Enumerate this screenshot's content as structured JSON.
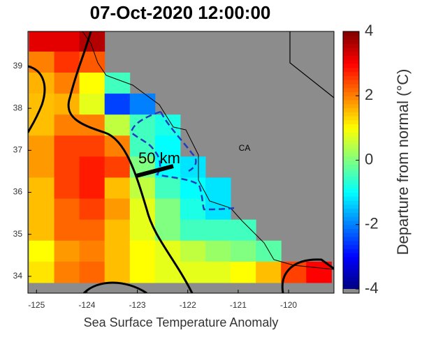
{
  "title": "07-Oct-2020 12:00:00",
  "xlabel": "Sea Surface Temperature Anomaly",
  "xlim": [
    -125.17,
    -119.1
  ],
  "ylim": [
    33.6,
    39.83
  ],
  "xticks": [
    -125,
    -124,
    -123,
    -122,
    -121,
    -120
  ],
  "yticks": [
    34,
    35,
    36,
    37,
    38,
    39
  ],
  "colorbar": {
    "label": "Departure from normal (°C)",
    "lim": [
      -4,
      4
    ],
    "ticks": [
      4,
      2,
      0,
      -2,
      -4
    ]
  },
  "annotations": {
    "state": "CA",
    "scale": "50 km"
  },
  "grid": {
    "lons": [
      -124.9,
      -124.4,
      -123.9,
      -123.4,
      -122.9,
      -122.4,
      -121.9,
      -121.4,
      -120.9,
      -120.4,
      -119.9,
      -119.4
    ],
    "lats": [
      39.6,
      39.1,
      38.6,
      38.1,
      37.6,
      37.1,
      36.6,
      36.1,
      35.6,
      35.1,
      34.6,
      34.1
    ],
    "values": [
      [
        3.2,
        3.2,
        3.6,
        null,
        null,
        null,
        null,
        null,
        null,
        null,
        null,
        null
      ],
      [
        2,
        2.6,
        2.3,
        null,
        null,
        null,
        null,
        null,
        null,
        null,
        null,
        null
      ],
      [
        1.6,
        2,
        1,
        -0.5,
        null,
        null,
        null,
        null,
        null,
        null,
        null,
        null
      ],
      [
        1.5,
        1.6,
        0.8,
        -2.5,
        -2,
        null,
        null,
        null,
        null,
        null,
        null,
        null
      ],
      [
        1.5,
        2,
        2,
        0.5,
        -0.5,
        -0.8,
        null,
        null,
        null,
        null,
        null,
        null
      ],
      [
        1.8,
        2.5,
        2.5,
        2,
        -0.5,
        -1,
        null,
        null,
        null,
        null,
        null,
        null
      ],
      [
        1.8,
        2.5,
        2.8,
        2.5,
        0,
        -1,
        -1.2,
        null,
        null,
        null,
        null,
        null
      ],
      [
        1.5,
        2.5,
        2.8,
        1.5,
        0.5,
        -0.5,
        -1,
        -1.2,
        null,
        null,
        null,
        null
      ],
      [
        1.5,
        2.2,
        2.5,
        1.8,
        0.8,
        0,
        -0.8,
        -1.2,
        null,
        null,
        null,
        null
      ],
      [
        1.5,
        2.2,
        2.2,
        1.5,
        0.8,
        0,
        -0.5,
        -0.5,
        -0.5,
        null,
        null,
        null
      ],
      [
        1,
        1.8,
        2,
        1.5,
        1,
        0.8,
        0.5,
        0.2,
        0,
        -0.3,
        null,
        null
      ],
      [
        1.2,
        2,
        2.2,
        1.5,
        1,
        0.8,
        0.8,
        0.8,
        1,
        1.5,
        2.5,
        3
      ]
    ]
  }
}
